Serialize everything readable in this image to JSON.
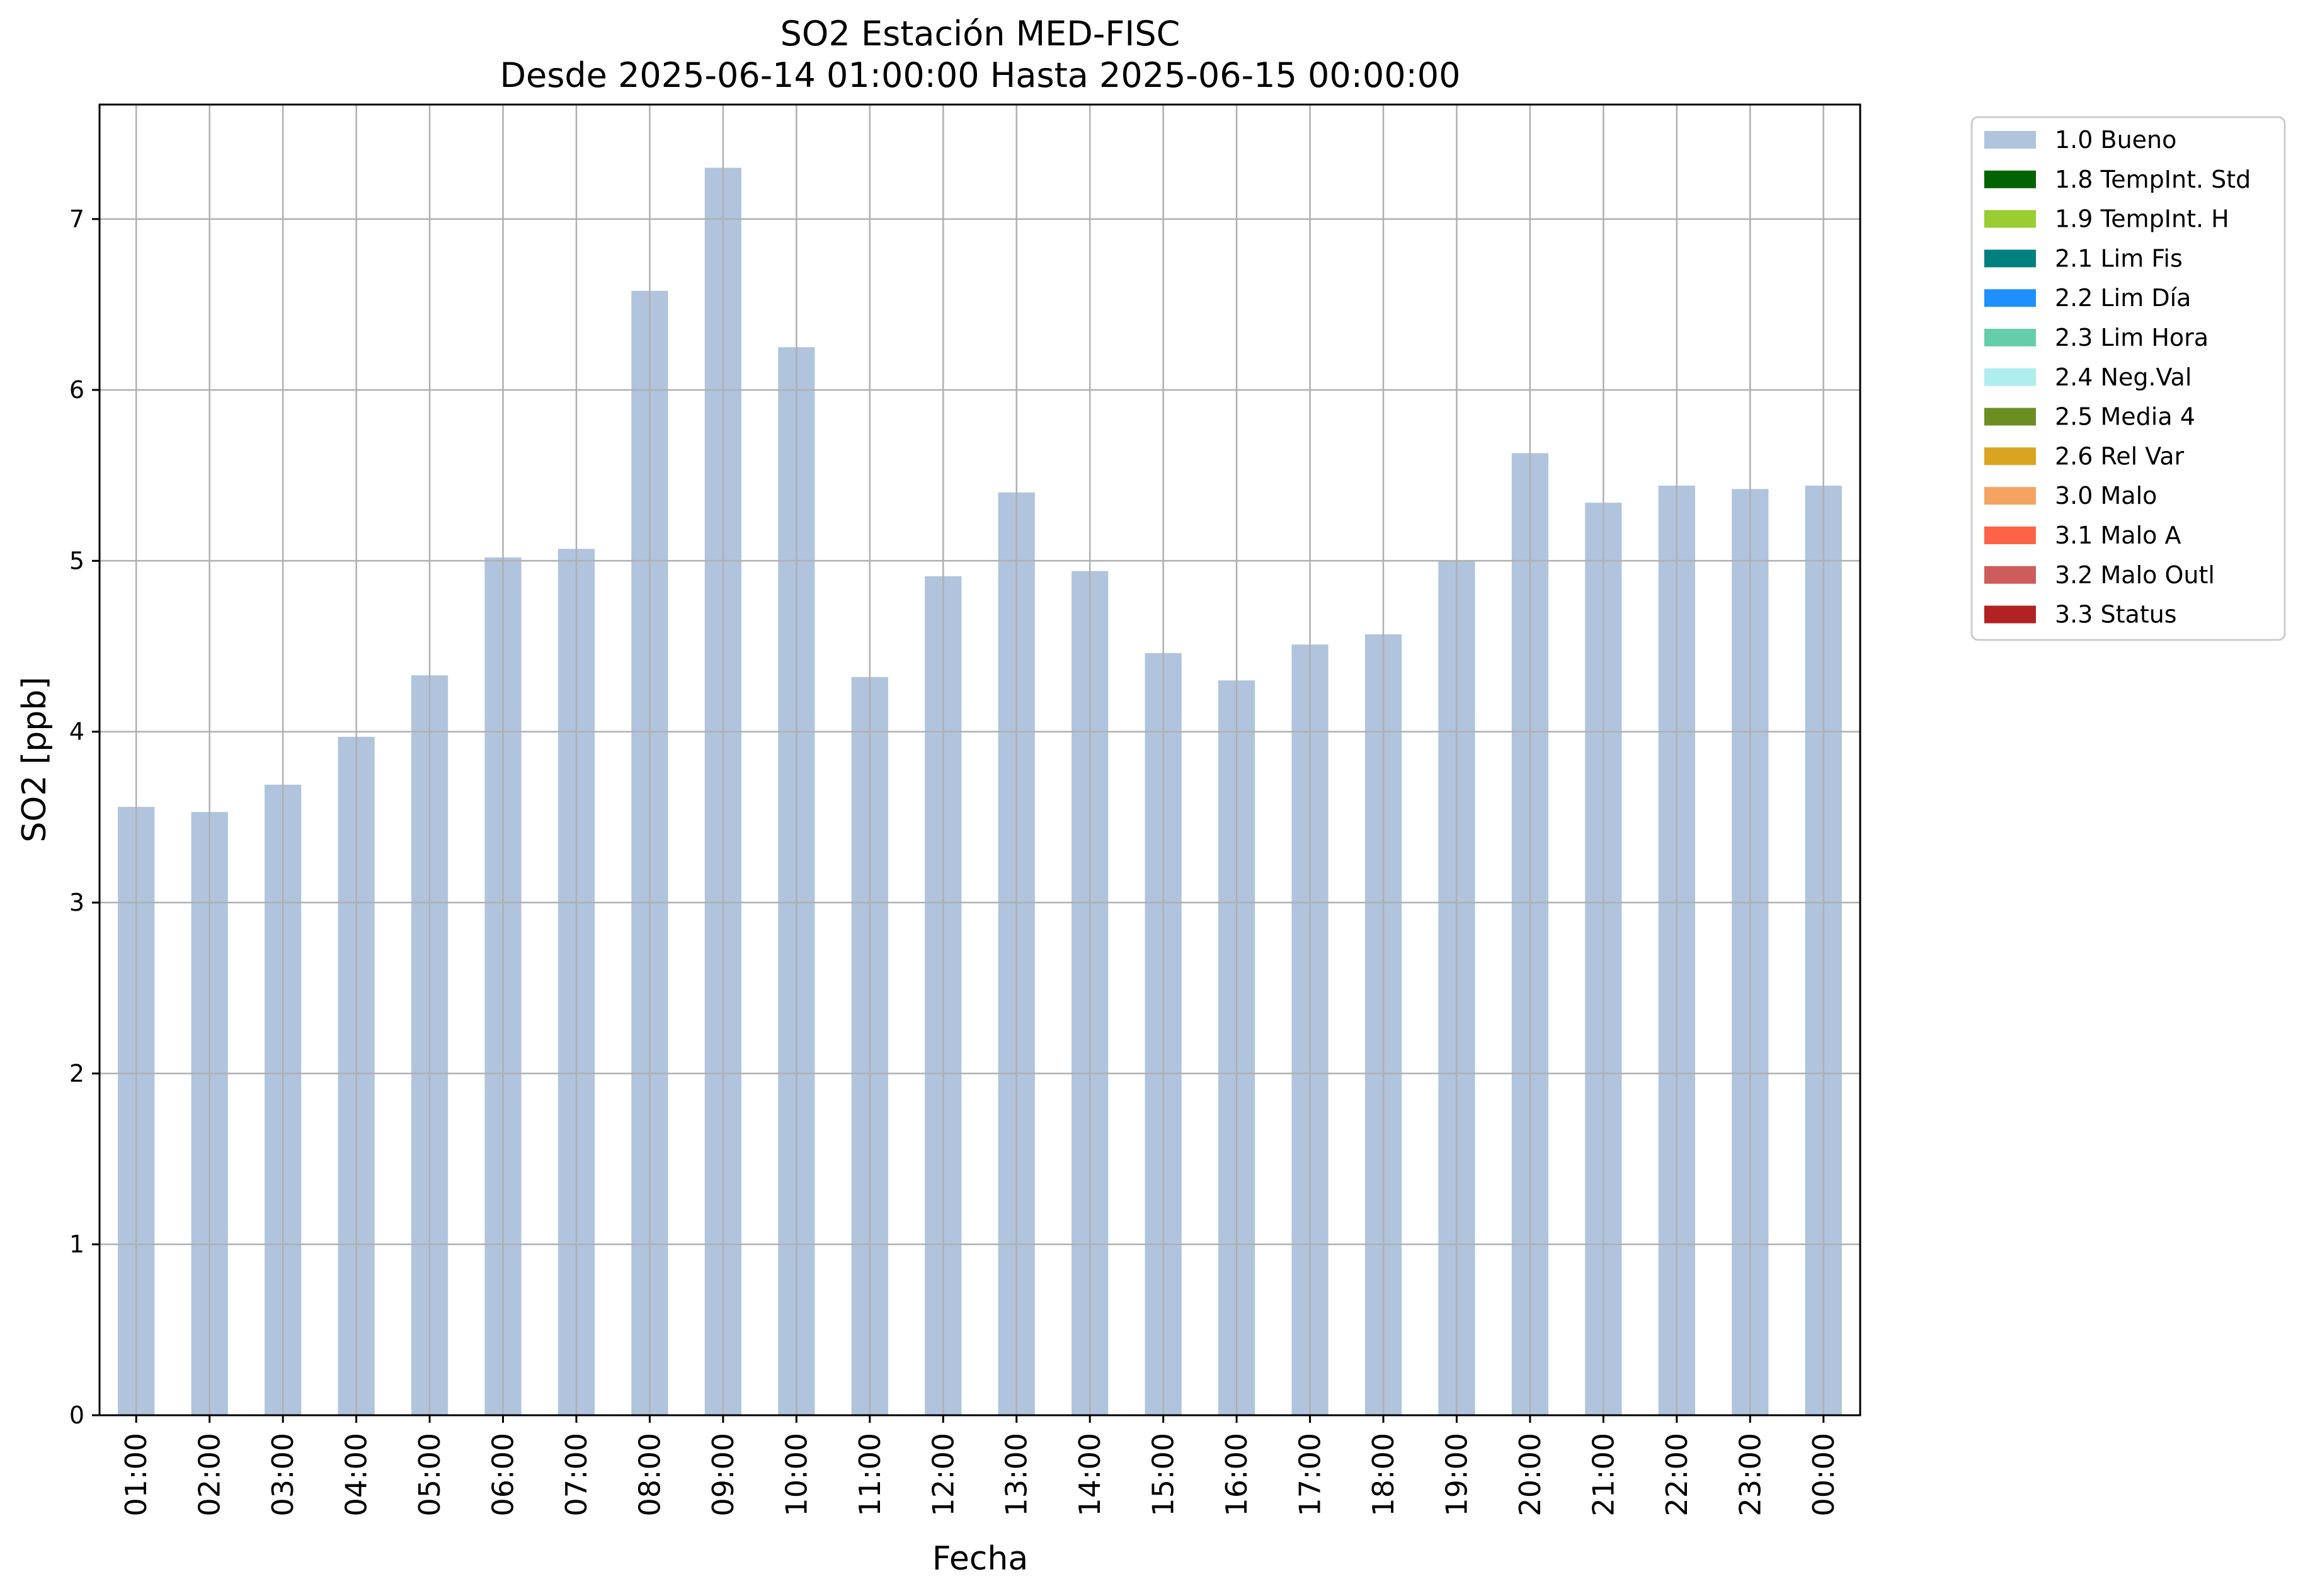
{
  "chart_data": {
    "type": "bar",
    "title_line1": "SO2 Estación MED-FISC",
    "title_line2": "Desde 2025-06-14 01:00:00 Hasta 2025-06-15 00:00:00",
    "xlabel": "Fecha",
    "ylabel": "SO2 [ppb]",
    "ylim": [
      0,
      7.67
    ],
    "yticks": [
      0,
      1,
      2,
      3,
      4,
      5,
      6,
      7
    ],
    "grid": true,
    "legend_position": "outside-top-right",
    "categories": [
      "01:00",
      "02:00",
      "03:00",
      "04:00",
      "05:00",
      "06:00",
      "07:00",
      "08:00",
      "09:00",
      "10:00",
      "11:00",
      "12:00",
      "13:00",
      "14:00",
      "15:00",
      "16:00",
      "17:00",
      "18:00",
      "19:00",
      "20:00",
      "21:00",
      "22:00",
      "23:00",
      "00:00"
    ],
    "series": [
      {
        "name": "1.0 Bueno",
        "color": "#b0c4de",
        "values": [
          3.56,
          3.53,
          3.69,
          3.97,
          4.33,
          5.02,
          5.07,
          6.58,
          7.3,
          6.25,
          4.32,
          4.91,
          5.4,
          4.94,
          4.46,
          4.3,
          4.51,
          4.57,
          5.0,
          5.63,
          5.34,
          5.44,
          5.42,
          5.44
        ]
      }
    ],
    "legend": [
      {
        "label": "1.0 Bueno",
        "color": "#b0c4de"
      },
      {
        "label": "1.8 TempInt. Std",
        "color": "#006400"
      },
      {
        "label": "1.9 TempInt. H",
        "color": "#9acd32"
      },
      {
        "label": "2.1 Lim Fis",
        "color": "#008080"
      },
      {
        "label": "2.2 Lim Día",
        "color": "#1e90ff"
      },
      {
        "label": "2.3 Lim Hora",
        "color": "#66cdaa"
      },
      {
        "label": "2.4 Neg.Val",
        "color": "#afeeee"
      },
      {
        "label": "2.5 Media 4",
        "color": "#6b8e23"
      },
      {
        "label": "2.6 Rel Var",
        "color": "#daa520"
      },
      {
        "label": "3.0 Malo",
        "color": "#f4a460"
      },
      {
        "label": "3.1 Malo A",
        "color": "#ff6347"
      },
      {
        "label": "3.2 Malo Outl",
        "color": "#cd5c5c"
      },
      {
        "label": "3.3 Status",
        "color": "#b22222"
      }
    ]
  }
}
